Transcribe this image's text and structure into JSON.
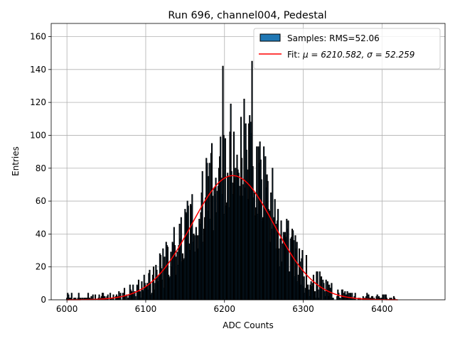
{
  "chart_data": {
    "type": "bar",
    "title": "Run 696, channel004, Pedestal",
    "xlabel": "ADC Counts",
    "ylabel": "Entries",
    "xlim": [
      5980,
      6480
    ],
    "ylim": [
      0,
      168
    ],
    "xticks": [
      6000,
      6100,
      6200,
      6300,
      6400
    ],
    "yticks": [
      0,
      20,
      40,
      60,
      80,
      100,
      120,
      140,
      160
    ],
    "grid": true,
    "legend_position": "upper-right",
    "series": [
      {
        "name": "Samples: RMS=52.06",
        "kind": "histogram",
        "color": "#1f77b4",
        "edge_color": "#000000",
        "note": "binned pedestal ADC samples, peak near 6236",
        "values": []
      },
      {
        "name": "Fit: μ = 6210.582, σ = 52.259",
        "kind": "gaussian-fit",
        "color": "#ff0000",
        "mu": 6210.582,
        "sigma": 52.259,
        "amplitude": 75.5
      }
    ],
    "legend": {
      "entries": [
        {
          "label_prefix": "Samples: RMS=52.06",
          "math": ""
        },
        {
          "label_prefix": "Fit: ",
          "math": "μ = 6210.582, σ = 52.259"
        }
      ]
    }
  }
}
